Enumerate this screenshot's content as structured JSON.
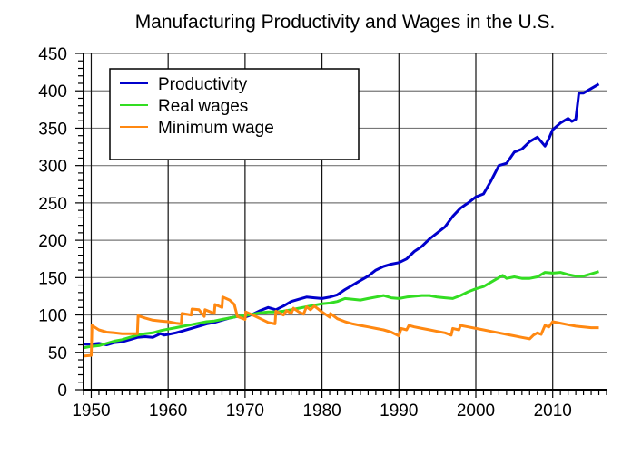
{
  "chart_data": {
    "type": "line",
    "title": "Manufacturing Productivity and Wages in the U.S.",
    "xlabel": "",
    "ylabel": "",
    "xlim": [
      1949,
      2017
    ],
    "ylim": [
      0,
      450
    ],
    "grid": true,
    "legend_position": "top-left",
    "x_ticks": [
      1950,
      1960,
      1970,
      1980,
      1990,
      2000,
      2010
    ],
    "x_tick_labels": [
      "1950",
      "1960",
      "1970",
      "1980",
      "1990",
      "2000",
      "2010"
    ],
    "y_ticks": [
      0,
      50,
      100,
      150,
      200,
      250,
      300,
      350,
      400,
      450
    ],
    "y_tick_labels": [
      "0",
      "50",
      "100",
      "150",
      "200",
      "250",
      "300",
      "350",
      "400",
      "450"
    ],
    "series": [
      {
        "name": "Productivity",
        "color": "#0000cc",
        "points": [
          [
            1949,
            61
          ],
          [
            1950,
            61
          ],
          [
            1951,
            62
          ],
          [
            1952,
            60
          ],
          [
            1953,
            63
          ],
          [
            1954,
            64
          ],
          [
            1955,
            67
          ],
          [
            1956,
            70
          ],
          [
            1957,
            71
          ],
          [
            1958,
            70
          ],
          [
            1959,
            75
          ],
          [
            1959.5,
            73
          ],
          [
            1960,
            74
          ],
          [
            1961,
            76
          ],
          [
            1962,
            79
          ],
          [
            1963,
            82
          ],
          [
            1964,
            85
          ],
          [
            1965,
            88
          ],
          [
            1966,
            90
          ],
          [
            1967,
            93
          ],
          [
            1968,
            96
          ],
          [
            1969,
            98
          ],
          [
            1970,
            97
          ],
          [
            1971,
            101
          ],
          [
            1972,
            106
          ],
          [
            1973,
            110
          ],
          [
            1974,
            107
          ],
          [
            1975,
            112
          ],
          [
            1976,
            118
          ],
          [
            1977,
            121
          ],
          [
            1978,
            124
          ],
          [
            1979,
            123
          ],
          [
            1980,
            122
          ],
          [
            1981,
            124
          ],
          [
            1982,
            127
          ],
          [
            1983,
            134
          ],
          [
            1984,
            140
          ],
          [
            1985,
            146
          ],
          [
            1986,
            152
          ],
          [
            1987,
            160
          ],
          [
            1988,
            165
          ],
          [
            1989,
            168
          ],
          [
            1990,
            170
          ],
          [
            1991,
            175
          ],
          [
            1992,
            185
          ],
          [
            1993,
            192
          ],
          [
            1994,
            202
          ],
          [
            1995,
            210
          ],
          [
            1996,
            218
          ],
          [
            1997,
            232
          ],
          [
            1998,
            243
          ],
          [
            1999,
            250
          ],
          [
            2000,
            258
          ],
          [
            2001,
            262
          ],
          [
            2002,
            280
          ],
          [
            2003,
            300
          ],
          [
            2004,
            303
          ],
          [
            2005,
            318
          ],
          [
            2006,
            322
          ],
          [
            2007,
            332
          ],
          [
            2008,
            338
          ],
          [
            2009,
            326
          ],
          [
            2009.5,
            336
          ],
          [
            2010,
            348
          ],
          [
            2011,
            357
          ],
          [
            2012,
            363
          ],
          [
            2012.5,
            359
          ],
          [
            2013,
            362
          ],
          [
            2013.4,
            397
          ],
          [
            2014,
            397
          ],
          [
            2015,
            403
          ],
          [
            2016,
            409
          ]
        ]
      },
      {
        "name": "Real wages",
        "color": "#33dd22",
        "points": [
          [
            1949,
            56
          ],
          [
            1950,
            58
          ],
          [
            1951,
            59
          ],
          [
            1952,
            62
          ],
          [
            1953,
            65
          ],
          [
            1954,
            67
          ],
          [
            1955,
            70
          ],
          [
            1956,
            73
          ],
          [
            1957,
            75
          ],
          [
            1958,
            76
          ],
          [
            1959,
            79
          ],
          [
            1960,
            81
          ],
          [
            1961,
            83
          ],
          [
            1962,
            85
          ],
          [
            1963,
            87
          ],
          [
            1964,
            89
          ],
          [
            1965,
            91
          ],
          [
            1966,
            92
          ],
          [
            1967,
            94
          ],
          [
            1968,
            96
          ],
          [
            1969,
            98
          ],
          [
            1970,
            99
          ],
          [
            1971,
            101
          ],
          [
            1972,
            103
          ],
          [
            1973,
            104
          ],
          [
            1974,
            104
          ],
          [
            1975,
            105
          ],
          [
            1976,
            107
          ],
          [
            1977,
            109
          ],
          [
            1978,
            111
          ],
          [
            1979,
            113
          ],
          [
            1980,
            115
          ],
          [
            1981,
            116
          ],
          [
            1982,
            118
          ],
          [
            1983,
            122
          ],
          [
            1984,
            121
          ],
          [
            1985,
            120
          ],
          [
            1986,
            122
          ],
          [
            1987,
            124
          ],
          [
            1988,
            126
          ],
          [
            1989,
            123
          ],
          [
            1990,
            122
          ],
          [
            1991,
            124
          ],
          [
            1992,
            125
          ],
          [
            1993,
            126
          ],
          [
            1994,
            126
          ],
          [
            1995,
            124
          ],
          [
            1996,
            123
          ],
          [
            1997,
            122
          ],
          [
            1998,
            126
          ],
          [
            1999,
            131
          ],
          [
            2000,
            135
          ],
          [
            2001,
            138
          ],
          [
            2002,
            144
          ],
          [
            2003,
            150
          ],
          [
            2003.5,
            153
          ],
          [
            2004,
            149
          ],
          [
            2005,
            151
          ],
          [
            2006,
            149
          ],
          [
            2007,
            149
          ],
          [
            2008,
            151
          ],
          [
            2009,
            157
          ],
          [
            2010,
            156
          ],
          [
            2011,
            157
          ],
          [
            2012,
            154
          ],
          [
            2013,
            152
          ],
          [
            2014,
            152
          ],
          [
            2015,
            155
          ],
          [
            2016,
            158
          ]
        ]
      },
      {
        "name": "Minimum wage",
        "color": "#ff8811",
        "points": [
          [
            1949,
            45
          ],
          [
            1950,
            46
          ],
          [
            1950.1,
            86
          ],
          [
            1951,
            80
          ],
          [
            1952,
            77
          ],
          [
            1953,
            76
          ],
          [
            1954,
            75
          ],
          [
            1955,
            75
          ],
          [
            1956,
            75
          ],
          [
            1956.1,
            99
          ],
          [
            1957,
            96
          ],
          [
            1958,
            93
          ],
          [
            1959,
            92
          ],
          [
            1960,
            91
          ],
          [
            1961,
            89
          ],
          [
            1961.7,
            88
          ],
          [
            1961.8,
            102
          ],
          [
            1963,
            100
          ],
          [
            1963.1,
            108
          ],
          [
            1964,
            107
          ],
          [
            1964.7,
            98
          ],
          [
            1964.8,
            107
          ],
          [
            1966,
            102
          ],
          [
            1966.1,
            114
          ],
          [
            1967,
            110
          ],
          [
            1967.1,
            124
          ],
          [
            1968,
            120
          ],
          [
            1968.6,
            114
          ],
          [
            1969,
            98
          ],
          [
            1970,
            94
          ],
          [
            1970.1,
            104
          ],
          [
            1971,
            100
          ],
          [
            1972,
            95
          ],
          [
            1973,
            90
          ],
          [
            1973.9,
            88
          ],
          [
            1974,
            105
          ],
          [
            1975,
            100
          ],
          [
            1975.4,
            106
          ],
          [
            1976,
            102
          ],
          [
            1976.3,
            109
          ],
          [
            1977,
            104
          ],
          [
            1977.6,
            101
          ],
          [
            1978,
            111
          ],
          [
            1978.5,
            107
          ],
          [
            1979,
            112
          ],
          [
            1980,
            104
          ],
          [
            1981,
            97
          ],
          [
            1981.1,
            102
          ],
          [
            1982,
            95
          ],
          [
            1983,
            91
          ],
          [
            1984,
            88
          ],
          [
            1985,
            86
          ],
          [
            1986,
            84
          ],
          [
            1987,
            82
          ],
          [
            1988,
            80
          ],
          [
            1989,
            77
          ],
          [
            1990,
            72
          ],
          [
            1990.3,
            82
          ],
          [
            1991,
            80
          ],
          [
            1991.3,
            86
          ],
          [
            1992,
            84
          ],
          [
            1993,
            82
          ],
          [
            1994,
            80
          ],
          [
            1995,
            78
          ],
          [
            1996,
            76
          ],
          [
            1996.8,
            73
          ],
          [
            1997,
            82
          ],
          [
            1997.8,
            80
          ],
          [
            1998,
            86
          ],
          [
            1999,
            84
          ],
          [
            2000,
            82
          ],
          [
            2001,
            80
          ],
          [
            2002,
            78
          ],
          [
            2003,
            76
          ],
          [
            2004,
            74
          ],
          [
            2005,
            72
          ],
          [
            2006,
            70
          ],
          [
            2007,
            68
          ],
          [
            2007.5,
            73
          ],
          [
            2008,
            76
          ],
          [
            2008.5,
            74
          ],
          [
            2009,
            86
          ],
          [
            2009.5,
            84
          ],
          [
            2010,
            91
          ],
          [
            2011,
            89
          ],
          [
            2012,
            87
          ],
          [
            2013,
            85
          ],
          [
            2014,
            84
          ],
          [
            2015,
            83
          ],
          [
            2016,
            83
          ]
        ]
      }
    ]
  }
}
